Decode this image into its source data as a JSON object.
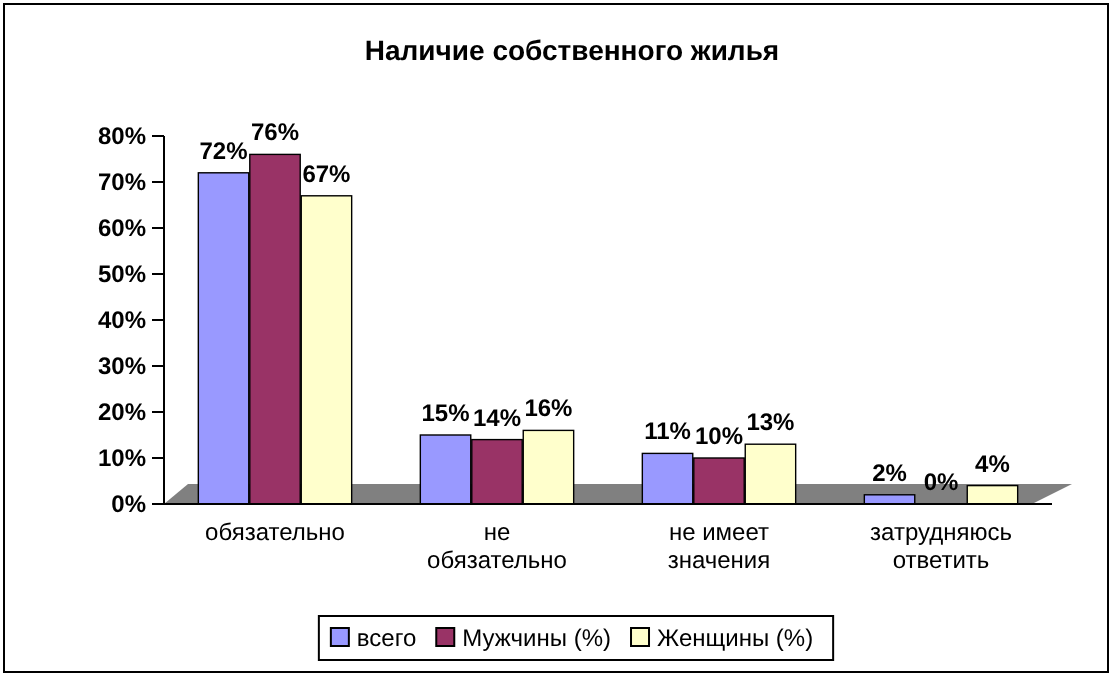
{
  "chart_data": {
    "type": "bar",
    "title": "Наличие собственного жилья",
    "categories": [
      "обязательно",
      "не обязательно",
      "не имеет значения",
      "затрудняюсь ответить"
    ],
    "series": [
      {
        "name": "всего",
        "color": "#9999ff",
        "values": [
          72,
          15,
          11,
          2
        ],
        "value_labels": [
          "72%",
          "15%",
          "11%",
          "2%"
        ]
      },
      {
        "name": "Мужчины (%)",
        "color": "#993366",
        "values": [
          76,
          14,
          10,
          0
        ],
        "value_labels": [
          "76%",
          "14%",
          "10%",
          "0%"
        ]
      },
      {
        "name": "Женщины (%)",
        "color": "#ffffcc",
        "values": [
          67,
          16,
          13,
          4
        ],
        "value_labels": [
          "67%",
          "16%",
          "13%",
          "4%"
        ]
      }
    ],
    "ylim": [
      0,
      80
    ],
    "yticks": [
      {
        "value": 0,
        "label": "0%"
      },
      {
        "value": 10,
        "label": "10%"
      },
      {
        "value": 20,
        "label": "20%"
      },
      {
        "value": 30,
        "label": "30%"
      },
      {
        "value": 40,
        "label": "40%"
      },
      {
        "value": 50,
        "label": "50%"
      },
      {
        "value": 60,
        "label": "60%"
      },
      {
        "value": 70,
        "label": "70%"
      },
      {
        "value": 80,
        "label": "80%"
      }
    ],
    "legend": "bottom"
  }
}
